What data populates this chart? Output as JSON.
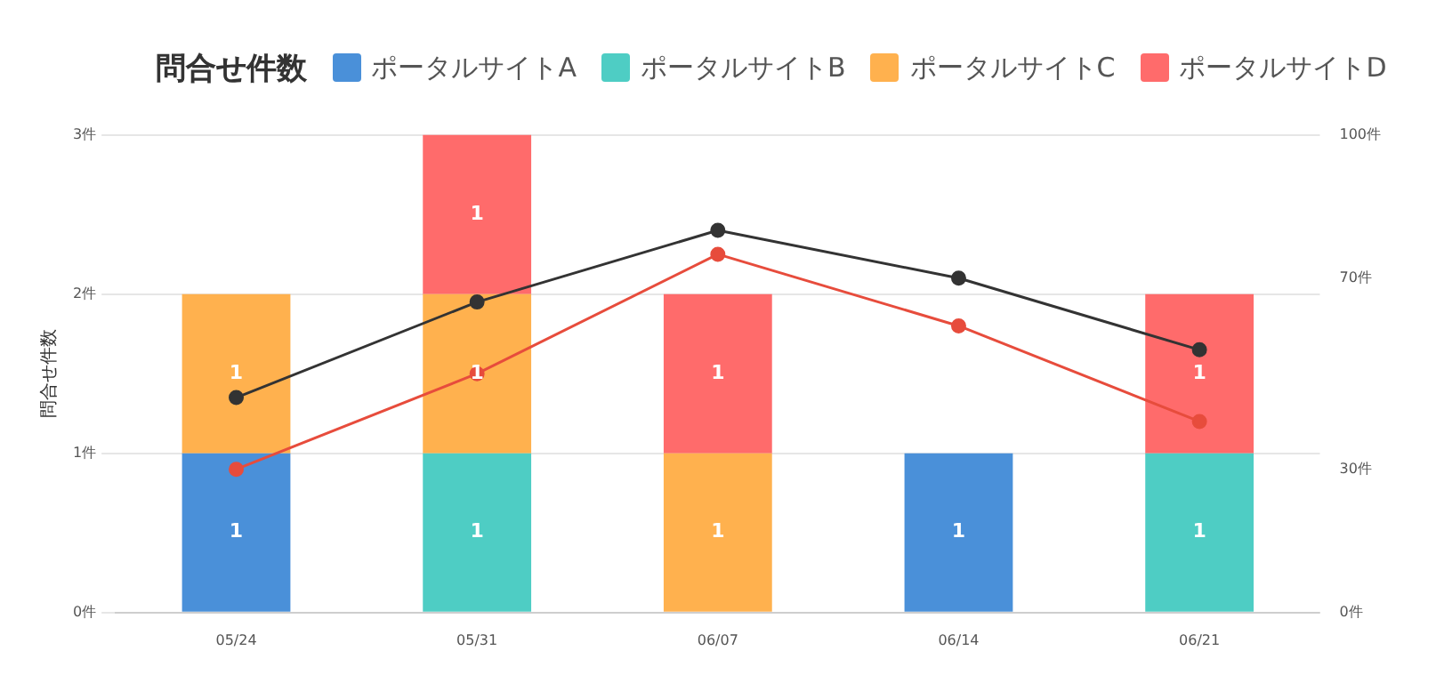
{
  "chart_data": {
    "type": "bar",
    "title": "問合せ件数",
    "ylabel": "問合せ件数",
    "categories": [
      "05/24",
      "05/31",
      "06/07",
      "06/14",
      "06/21"
    ],
    "stacked": true,
    "legend": "top",
    "grid": "y",
    "marker": "circle",
    "series": [
      {
        "name": "ポータルサイトA",
        "color": "#4a90d9",
        "values": [
          1,
          null,
          null,
          1,
          null
        ],
        "value_labels": [
          "1",
          null,
          null,
          "1",
          null
        ]
      },
      {
        "name": "ポータルサイトB",
        "color": "#4ecdc4",
        "values": [
          null,
          1,
          null,
          null,
          1
        ],
        "value_labels": [
          null,
          "1",
          null,
          null,
          "1"
        ]
      },
      {
        "name": "ポータルサイトC",
        "color": "#ffb14e",
        "values": [
          1,
          1,
          1,
          null,
          null
        ],
        "value_labels": [
          "1",
          "1",
          "1",
          null,
          null
        ]
      },
      {
        "name": "ポータルサイトD",
        "color": "#ff6b6b",
        "values": [
          null,
          1,
          1,
          null,
          1
        ],
        "value_labels": [
          null,
          "1",
          "1",
          null,
          "1"
        ]
      },
      {
        "type": "line",
        "axis": "y2",
        "color": "#333333",
        "values": [
          45,
          65,
          80,
          70,
          55
        ]
      },
      {
        "type": "line",
        "axis": "y2",
        "color": "#e74c3c",
        "values": [
          30,
          50,
          75,
          60,
          40
        ]
      }
    ],
    "ylim": [
      0,
      3
    ],
    "yticks": [
      {
        "value": 0,
        "label": "0件"
      },
      {
        "value": 1,
        "label": "1件"
      },
      {
        "value": 2,
        "label": "2件"
      },
      {
        "value": 3,
        "label": "3件"
      }
    ],
    "y2lim": [
      0,
      100
    ],
    "y2ticks": [
      {
        "value": 0,
        "label": "0件"
      },
      {
        "value": 30,
        "label": "30件"
      },
      {
        "value": 70,
        "label": "70件"
      },
      {
        "value": 100,
        "label": "100件"
      }
    ]
  }
}
